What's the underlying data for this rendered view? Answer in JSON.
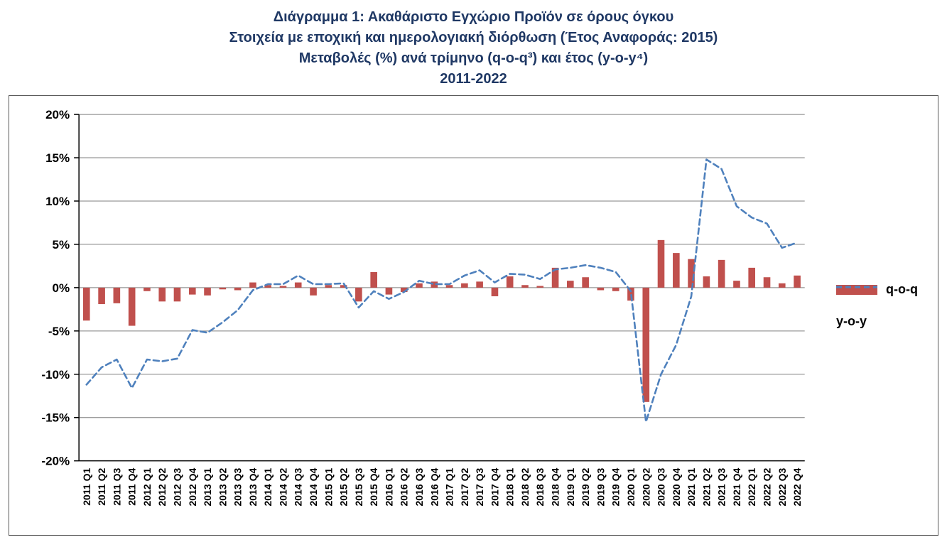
{
  "title": {
    "line1": "Διάγραμμα 1: Ακαθάριστο Εγχώριο Προϊόν σε όρους όγκου",
    "line2": "Στοιχεία με εποχική και ημερολογιακή διόρθωση (Έτος Αναφοράς: 2015)",
    "line3": "Μεταβολές (%) ανά τρίμηνο (q-o-q³) και έτος (y-o-y⁴)",
    "line4": "2011-2022"
  },
  "legend": {
    "qoq": "q-o-q",
    "yoy": "y-o-y"
  },
  "colors": {
    "bar": "#C0504D",
    "line": "#4F81BD",
    "title": "#1F3864",
    "grid": "#7F7F7F",
    "axis": "#000000"
  },
  "chart_data": {
    "type": "bar",
    "subtype": "combo bar + dashed line",
    "title": "Διάγραμμα 1: Ακαθάριστο Εγχώριο Προϊόν σε όρους όγκου",
    "subtitle": "Στοιχεία με εποχική και ημερολογιακή διόρθωση (Έτος Αναφοράς: 2015) — Μεταβολές (%) ανά τρίμηνο (q-o-q) και έτος (y-o-y), 2011-2022",
    "xlabel": "",
    "ylabel": "",
    "ylim": [
      -20,
      20
    ],
    "ytick_step": 5,
    "ytick_format": "percent",
    "grid": "horizontal",
    "legend_position": "right",
    "categories": [
      "2011 Q1",
      "2011 Q2",
      "2011 Q3",
      "2011 Q4",
      "2012 Q1",
      "2012 Q2",
      "2012 Q3",
      "2012 Q4",
      "2013 Q1",
      "2013 Q2",
      "2013 Q3",
      "2013 Q4",
      "2014 Q1",
      "2014 Q2",
      "2014 Q3",
      "2014 Q4",
      "2015 Q1",
      "2015 Q2",
      "2015 Q3",
      "2015 Q4",
      "2016 Q1",
      "2016 Q2",
      "2016 Q3",
      "2016 Q4",
      "2017 Q1",
      "2017 Q2",
      "2017 Q3",
      "2017 Q4",
      "2018 Q1",
      "2018 Q2",
      "2018 Q3",
      "2018 Q4",
      "2019 Q1",
      "2019 Q2",
      "2019 Q3",
      "2019 Q4",
      "2020 Q1",
      "2020 Q2",
      "2020 Q3",
      "2020 Q4",
      "2021 Q1",
      "2021 Q2",
      "2021 Q3",
      "2021 Q4",
      "2022 Q1",
      "2022 Q2",
      "2022 Q3",
      "2022 Q4"
    ],
    "series": [
      {
        "name": "q-o-q",
        "type": "bar",
        "color": "#C0504D",
        "values": [
          -3.8,
          -1.9,
          -1.8,
          -4.4,
          -0.4,
          -1.6,
          -1.6,
          -0.8,
          -0.9,
          -0.2,
          -0.3,
          0.6,
          0.3,
          0.2,
          0.6,
          -0.9,
          0.3,
          0.3,
          -1.6,
          1.8,
          -0.8,
          -0.5,
          0.5,
          0.7,
          0.3,
          0.5,
          0.7,
          -1.0,
          1.3,
          0.3,
          0.2,
          2.3,
          0.8,
          1.2,
          -0.3,
          -0.4,
          -1.5,
          -13.2,
          5.5,
          4.0,
          3.3,
          1.3,
          3.2,
          0.8,
          2.3,
          1.2,
          0.5,
          1.4
        ]
      },
      {
        "name": "y-o-y",
        "type": "line",
        "color": "#4F81BD",
        "dashed": true,
        "values": [
          -11.2,
          -9.2,
          -8.3,
          -11.6,
          -8.3,
          -8.5,
          -8.2,
          -4.9,
          -5.2,
          -4.0,
          -2.6,
          -0.3,
          0.4,
          0.4,
          1.4,
          0.4,
          0.4,
          0.5,
          -2.3,
          -0.4,
          -1.3,
          -0.5,
          0.8,
          0.4,
          0.4,
          1.4,
          2.0,
          0.6,
          1.6,
          1.5,
          1.0,
          2.1,
          2.3,
          2.6,
          2.3,
          1.8,
          -0.4,
          -15.5,
          -10.0,
          -6.6,
          -1.0,
          14.8,
          13.7,
          9.4,
          8.1,
          7.4,
          4.6,
          5.2
        ]
      }
    ]
  }
}
